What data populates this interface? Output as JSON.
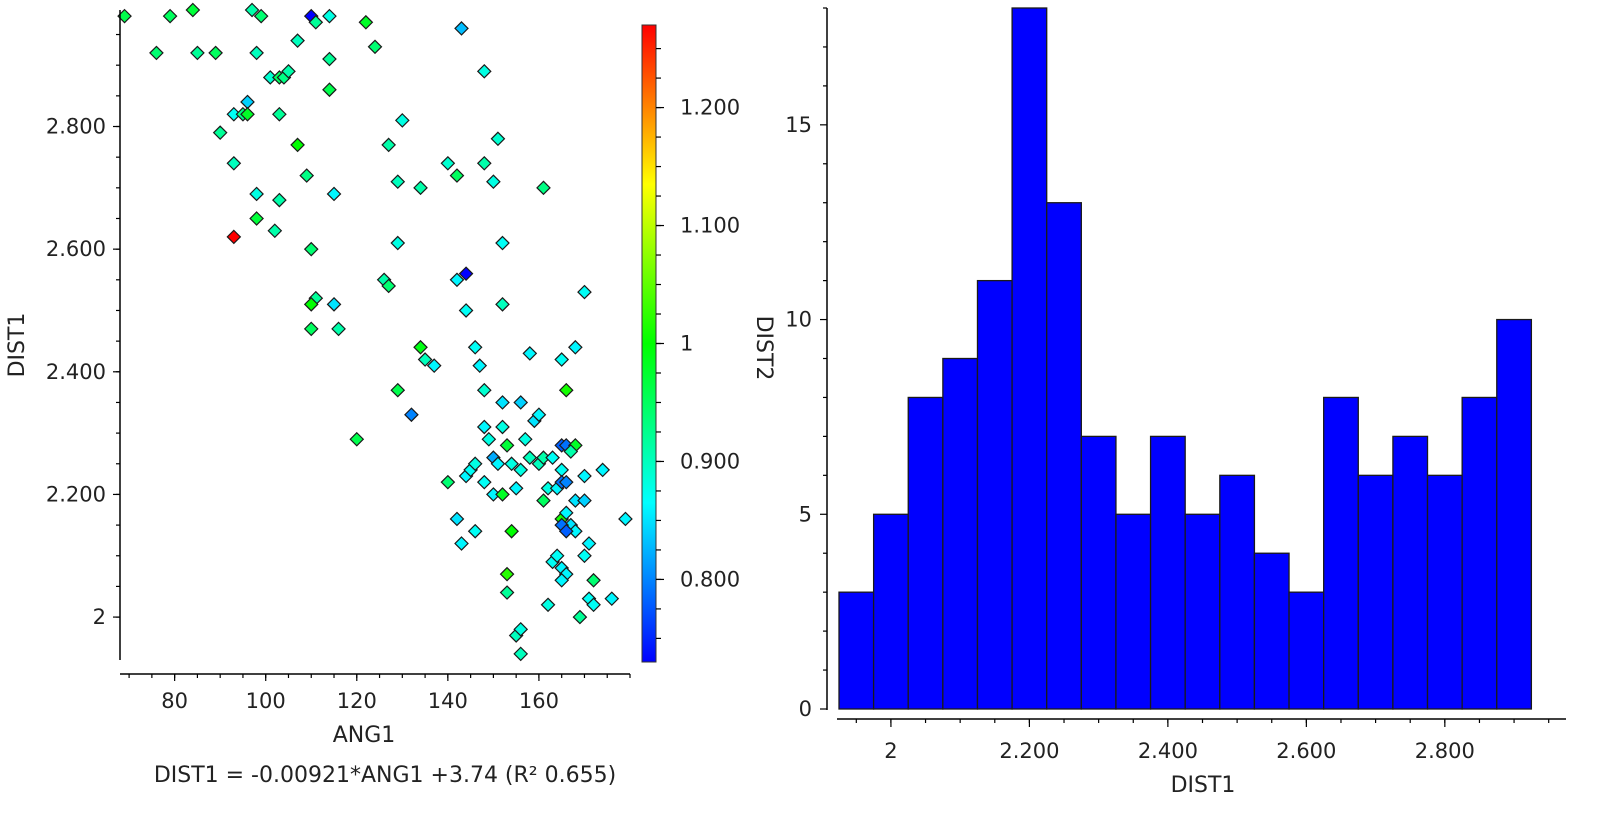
{
  "chart_data": [
    {
      "type": "scatter",
      "xlabel": "ANG1",
      "ylabel": "DIST1",
      "xlim": [
        68,
        180
      ],
      "ylim": [
        1.93,
        2.99
      ],
      "xticks": [
        80,
        100,
        120,
        140,
        160
      ],
      "xtick_labels": [
        "80",
        "100",
        "120",
        "140",
        "160"
      ],
      "yticks": [
        2.0,
        2.2,
        2.4,
        2.6,
        2.8
      ],
      "ytick_labels": [
        "2",
        "2.200",
        "2.400",
        "2.600",
        "2.800"
      ],
      "regression_label": "DIST1 = -0.00921*ANG1 +3.74 (R² 0.655)",
      "colorbar": {
        "min": 0.73,
        "max": 1.27,
        "ticks": [
          0.8,
          0.9,
          1.0,
          1.1,
          1.2
        ],
        "tick_labels": [
          "0.800",
          "0.900",
          "1",
          "1.100",
          "1.200"
        ]
      },
      "points": [
        [
          69,
          2.98,
          0.96
        ],
        [
          76,
          2.92,
          0.94
        ],
        [
          79,
          2.98,
          0.95
        ],
        [
          84,
          2.99,
          0.97
        ],
        [
          85,
          2.92,
          0.92
        ],
        [
          89,
          2.92,
          0.95
        ],
        [
          97,
          2.99,
          0.91
        ],
        [
          99,
          2.98,
          0.94
        ],
        [
          98,
          2.92,
          0.9
        ],
        [
          107,
          2.94,
          0.9
        ],
        [
          110,
          2.98,
          0.73
        ],
        [
          111,
          2.97,
          0.92
        ],
        [
          114,
          2.98,
          0.88
        ],
        [
          122,
          2.97,
          0.98
        ],
        [
          114,
          2.91,
          0.92
        ],
        [
          124,
          2.93,
          0.94
        ],
        [
          101,
          2.88,
          0.89
        ],
        [
          103,
          2.88,
          0.95
        ],
        [
          104,
          2.88,
          0.93
        ],
        [
          105,
          2.89,
          0.91
        ],
        [
          143,
          2.96,
          0.83
        ],
        [
          148,
          2.89,
          0.88
        ],
        [
          114,
          2.86,
          0.96
        ],
        [
          96,
          2.84,
          0.84
        ],
        [
          93,
          2.82,
          0.87
        ],
        [
          95,
          2.82,
          0.93
        ],
        [
          96,
          2.82,
          0.98
        ],
        [
          103,
          2.82,
          0.92
        ],
        [
          90,
          2.79,
          0.92
        ],
        [
          107,
          2.77,
          1.0
        ],
        [
          127,
          2.77,
          0.91
        ],
        [
          130,
          2.81,
          0.88
        ],
        [
          151,
          2.78,
          0.89
        ],
        [
          93,
          2.74,
          0.9
        ],
        [
          109,
          2.72,
          0.93
        ],
        [
          129,
          2.71,
          0.9
        ],
        [
          134,
          2.7,
          0.91
        ],
        [
          140,
          2.74,
          0.89
        ],
        [
          142,
          2.72,
          0.95
        ],
        [
          148,
          2.74,
          0.91
        ],
        [
          150,
          2.71,
          0.88
        ],
        [
          161,
          2.7,
          0.93
        ],
        [
          98,
          2.69,
          0.88
        ],
        [
          115,
          2.69,
          0.86
        ],
        [
          103,
          2.68,
          0.91
        ],
        [
          98,
          2.65,
          0.97
        ],
        [
          102,
          2.63,
          0.91
        ],
        [
          93,
          2.62,
          1.27
        ],
        [
          110,
          2.6,
          0.94
        ],
        [
          129,
          2.61,
          0.88
        ],
        [
          152,
          2.61,
          0.87
        ],
        [
          126,
          2.55,
          0.91
        ],
        [
          127,
          2.54,
          0.94
        ],
        [
          142,
          2.55,
          0.86
        ],
        [
          144,
          2.56,
          0.73
        ],
        [
          111,
          2.52,
          0.92
        ],
        [
          110,
          2.51,
          1.0
        ],
        [
          115,
          2.51,
          0.85
        ],
        [
          152,
          2.51,
          0.9
        ],
        [
          170,
          2.53,
          0.87
        ],
        [
          110,
          2.47,
          0.95
        ],
        [
          116,
          2.47,
          0.91
        ],
        [
          144,
          2.5,
          0.87
        ],
        [
          134,
          2.44,
          0.99
        ],
        [
          135,
          2.42,
          0.9
        ],
        [
          137,
          2.41,
          0.86
        ],
        [
          146,
          2.44,
          0.87
        ],
        [
          147,
          2.41,
          0.86
        ],
        [
          158,
          2.43,
          0.86
        ],
        [
          165,
          2.42,
          0.87
        ],
        [
          168,
          2.44,
          0.86
        ],
        [
          129,
          2.37,
          0.96
        ],
        [
          148,
          2.37,
          0.89
        ],
        [
          152,
          2.35,
          0.85
        ],
        [
          156,
          2.35,
          0.84
        ],
        [
          166,
          2.37,
          1.01
        ],
        [
          132,
          2.33,
          0.8
        ],
        [
          148,
          2.31,
          0.86
        ],
        [
          152,
          2.31,
          0.88
        ],
        [
          159,
          2.32,
          0.85
        ],
        [
          160,
          2.33,
          0.86
        ],
        [
          120,
          2.29,
          0.96
        ],
        [
          149,
          2.29,
          0.88
        ],
        [
          153,
          2.28,
          0.97
        ],
        [
          157,
          2.29,
          0.88
        ],
        [
          165,
          2.28,
          0.78
        ],
        [
          166,
          2.28,
          0.79
        ],
        [
          168,
          2.28,
          0.98
        ],
        [
          150,
          2.26,
          0.82
        ],
        [
          151,
          2.25,
          0.86
        ],
        [
          154,
          2.25,
          0.88
        ],
        [
          156,
          2.24,
          0.88
        ],
        [
          158,
          2.26,
          0.9
        ],
        [
          160,
          2.25,
          0.9
        ],
        [
          161,
          2.26,
          0.91
        ],
        [
          163,
          2.26,
          0.87
        ],
        [
          165,
          2.24,
          0.87
        ],
        [
          167,
          2.27,
          0.91
        ],
        [
          170,
          2.23,
          0.86
        ],
        [
          174,
          2.24,
          0.86
        ],
        [
          140,
          2.22,
          0.94
        ],
        [
          144,
          2.23,
          0.86
        ],
        [
          145,
          2.24,
          0.87
        ],
        [
          146,
          2.25,
          0.88
        ],
        [
          148,
          2.22,
          0.87
        ],
        [
          150,
          2.2,
          0.86
        ],
        [
          152,
          2.2,
          0.98
        ],
        [
          155,
          2.21,
          0.86
        ],
        [
          162,
          2.21,
          0.88
        ],
        [
          164,
          2.21,
          0.86
        ],
        [
          165,
          2.22,
          0.79
        ],
        [
          166,
          2.22,
          0.8
        ],
        [
          168,
          2.19,
          0.85
        ],
        [
          170,
          2.19,
          0.84
        ],
        [
          142,
          2.16,
          0.85
        ],
        [
          146,
          2.14,
          0.87
        ],
        [
          154,
          2.14,
          1.0
        ],
        [
          161,
          2.19,
          0.95
        ],
        [
          165,
          2.16,
          1.01
        ],
        [
          166,
          2.17,
          0.86
        ],
        [
          167,
          2.15,
          0.85
        ],
        [
          168,
          2.14,
          0.86
        ],
        [
          179,
          2.16,
          0.86
        ],
        [
          165,
          2.15,
          0.79
        ],
        [
          166,
          2.14,
          0.78
        ],
        [
          143,
          2.12,
          0.86
        ],
        [
          171,
          2.12,
          0.86
        ],
        [
          163,
          2.09,
          0.87
        ],
        [
          164,
          2.1,
          0.87
        ],
        [
          165,
          2.08,
          0.86
        ],
        [
          166,
          2.07,
          0.86
        ],
        [
          170,
          2.1,
          0.87
        ],
        [
          153,
          2.07,
          1.02
        ],
        [
          153,
          2.04,
          0.92
        ],
        [
          162,
          2.02,
          0.88
        ],
        [
          165,
          2.06,
          0.86
        ],
        [
          169,
          2.0,
          0.92
        ],
        [
          171,
          2.03,
          0.87
        ],
        [
          172,
          2.02,
          0.87
        ],
        [
          172,
          2.06,
          0.94
        ],
        [
          176,
          2.03,
          0.86
        ],
        [
          155,
          1.97,
          0.9
        ],
        [
          156,
          1.98,
          0.88
        ],
        [
          156,
          1.94,
          0.9
        ]
      ]
    },
    {
      "type": "bar",
      "xlabel": "DIST1",
      "ylabel": "DIST2",
      "xlim": [
        1.925,
        2.975
      ],
      "ylim": [
        0,
        18
      ],
      "xticks": [
        2.0,
        2.2,
        2.4,
        2.6,
        2.8
      ],
      "xtick_labels": [
        "2",
        "2.200",
        "2.400",
        "2.600",
        "2.800"
      ],
      "yticks": [
        0,
        5,
        10,
        15
      ],
      "ytick_labels": [
        "0",
        "5",
        "10",
        "15"
      ],
      "bin_start": 1.925,
      "bin_width": 0.05,
      "values": [
        3,
        5,
        8,
        9,
        11,
        18,
        13,
        7,
        5,
        7,
        5,
        6,
        4,
        3,
        8,
        6,
        7,
        6,
        8,
        10
      ],
      "bar_color": "#0000ff"
    }
  ]
}
